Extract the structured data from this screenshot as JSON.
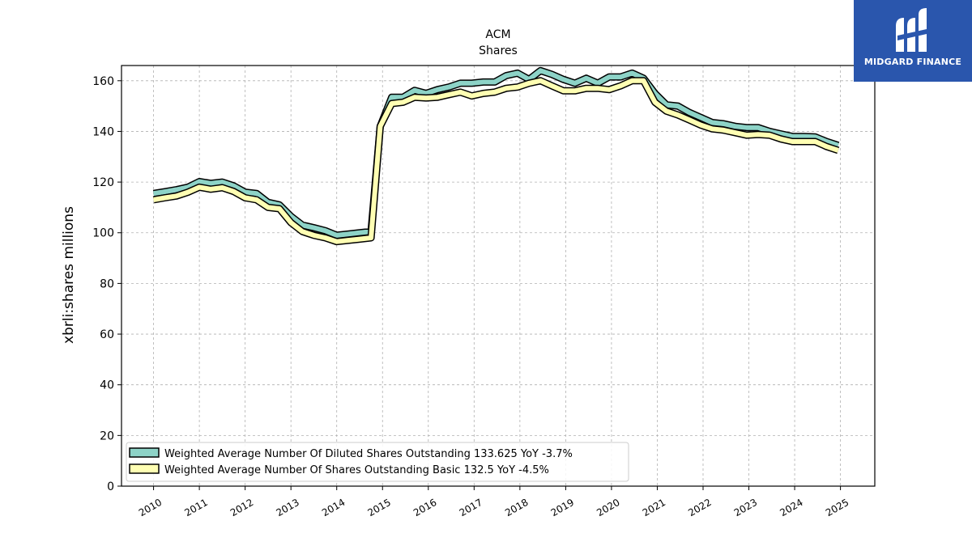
{
  "brand": {
    "name": "MIDGARD FINANCE",
    "bg_color": "#2a56ad"
  },
  "chart_data": {
    "type": "area",
    "title": "ACM",
    "subtitle": "Shares",
    "ylabel": "xbrli:shares millions",
    "xlabel": "",
    "ylim": [
      0,
      166
    ],
    "xlim": [
      2009.3,
      2025.75
    ],
    "yticks": [
      0,
      20,
      40,
      60,
      80,
      100,
      120,
      140,
      160
    ],
    "xticks": [
      "2010",
      "2011",
      "2012",
      "2013",
      "2014",
      "2015",
      "2016",
      "2017",
      "2018",
      "2019",
      "2020",
      "2021",
      "2022",
      "2023",
      "2024",
      "2025"
    ],
    "grid": true,
    "legend_position": "lower-left",
    "series": [
      {
        "name": "Weighted Average Number Of Diluted Shares Outstanding",
        "legend_label": "Weighted Average Number Of Diluted Shares Outstanding  133.625 YoY -3.7%",
        "color": "#8dd3c7",
        "points": [
          [
            2010.0,
            115.5
          ],
          [
            2010.25,
            116.2
          ],
          [
            2010.5,
            117.0
          ],
          [
            2010.75,
            118.0
          ],
          [
            2011.0,
            120.2
          ],
          [
            2011.25,
            119.5
          ],
          [
            2011.5,
            120.0
          ],
          [
            2011.75,
            118.5
          ],
          [
            2012.0,
            116.0
          ],
          [
            2012.25,
            115.5
          ],
          [
            2012.5,
            112.0
          ],
          [
            2012.75,
            111.0
          ],
          [
            2013.0,
            106.5
          ],
          [
            2013.25,
            103.0
          ],
          [
            2013.5,
            102.0
          ],
          [
            2013.75,
            100.8
          ],
          [
            2014.0,
            99.0
          ],
          [
            2014.25,
            99.5
          ],
          [
            2014.5,
            100.0
          ],
          [
            2014.75,
            100.5
          ],
          [
            2014.95,
            142.0
          ],
          [
            2015.2,
            153.5
          ],
          [
            2015.45,
            153.5
          ],
          [
            2015.7,
            156.2
          ],
          [
            2015.95,
            155.0
          ],
          [
            2016.2,
            156.5
          ],
          [
            2016.45,
            157.5
          ],
          [
            2016.7,
            159.0
          ],
          [
            2016.95,
            159.0
          ],
          [
            2017.2,
            159.5
          ],
          [
            2017.45,
            159.5
          ],
          [
            2017.7,
            162.0
          ],
          [
            2017.95,
            163.0
          ],
          [
            2018.2,
            160.5
          ],
          [
            2018.45,
            164.0
          ],
          [
            2018.7,
            162.5
          ],
          [
            2018.95,
            160.5
          ],
          [
            2019.2,
            159.0
          ],
          [
            2019.45,
            161.0
          ],
          [
            2019.7,
            159.0
          ],
          [
            2019.95,
            161.5
          ],
          [
            2020.2,
            161.5
          ],
          [
            2020.45,
            163.0
          ],
          [
            2020.7,
            161.0
          ],
          [
            2020.95,
            155.0
          ],
          [
            2021.2,
            150.5
          ],
          [
            2021.45,
            150.0
          ],
          [
            2021.7,
            147.5
          ],
          [
            2021.95,
            145.5
          ],
          [
            2022.2,
            143.5
          ],
          [
            2022.45,
            143.0
          ],
          [
            2022.7,
            142.0
          ],
          [
            2022.95,
            141.5
          ],
          [
            2023.2,
            141.5
          ],
          [
            2023.45,
            140.0
          ],
          [
            2023.7,
            139.0
          ],
          [
            2023.95,
            138.0
          ],
          [
            2024.2,
            138.0
          ],
          [
            2024.45,
            137.8
          ],
          [
            2024.7,
            136.0
          ],
          [
            2024.95,
            134.5
          ]
        ]
      },
      {
        "name": "Weighted Average Number Of Shares Outstanding Basic",
        "legend_label": "Weighted Average Number Of Shares Outstanding Basic  132.5 YoY -4.5%",
        "color": "#ffffb3",
        "points": [
          [
            2010.0,
            113.0
          ],
          [
            2010.25,
            113.8
          ],
          [
            2010.5,
            114.5
          ],
          [
            2010.75,
            116.0
          ],
          [
            2011.0,
            118.0
          ],
          [
            2011.25,
            117.2
          ],
          [
            2011.5,
            117.8
          ],
          [
            2011.75,
            116.3
          ],
          [
            2012.0,
            113.8
          ],
          [
            2012.25,
            113.0
          ],
          [
            2012.5,
            110.0
          ],
          [
            2012.75,
            109.5
          ],
          [
            2013.0,
            104.0
          ],
          [
            2013.25,
            100.5
          ],
          [
            2013.5,
            99.0
          ],
          [
            2013.75,
            98.0
          ],
          [
            2014.0,
            96.5
          ],
          [
            2014.25,
            97.0
          ],
          [
            2014.5,
            97.5
          ],
          [
            2014.75,
            98.0
          ],
          [
            2014.95,
            142.0
          ],
          [
            2015.2,
            151.0
          ],
          [
            2015.45,
            151.5
          ],
          [
            2015.7,
            153.5
          ],
          [
            2015.95,
            153.2
          ],
          [
            2016.2,
            153.5
          ],
          [
            2016.45,
            154.5
          ],
          [
            2016.7,
            155.5
          ],
          [
            2016.95,
            154.0
          ],
          [
            2017.2,
            155.0
          ],
          [
            2017.45,
            155.5
          ],
          [
            2017.7,
            157.0
          ],
          [
            2017.95,
            157.5
          ],
          [
            2018.2,
            159.0
          ],
          [
            2018.45,
            160.0
          ],
          [
            2018.7,
            158.0
          ],
          [
            2018.95,
            156.0
          ],
          [
            2019.2,
            156.0
          ],
          [
            2019.45,
            157.0
          ],
          [
            2019.7,
            157.0
          ],
          [
            2019.95,
            156.5
          ],
          [
            2020.2,
            158.0
          ],
          [
            2020.45,
            160.0
          ],
          [
            2020.7,
            160.0
          ],
          [
            2020.95,
            151.5
          ],
          [
            2021.2,
            148.0
          ],
          [
            2021.45,
            146.5
          ],
          [
            2021.7,
            144.5
          ],
          [
            2021.95,
            142.5
          ],
          [
            2022.2,
            141.0
          ],
          [
            2022.45,
            140.5
          ],
          [
            2022.7,
            139.5
          ],
          [
            2022.95,
            138.5
          ],
          [
            2023.2,
            138.8
          ],
          [
            2023.45,
            138.5
          ],
          [
            2023.7,
            137.0
          ],
          [
            2023.95,
            136.0
          ],
          [
            2024.2,
            136.0
          ],
          [
            2024.45,
            136.0
          ],
          [
            2024.7,
            134.0
          ],
          [
            2024.95,
            132.5
          ]
        ]
      }
    ]
  }
}
